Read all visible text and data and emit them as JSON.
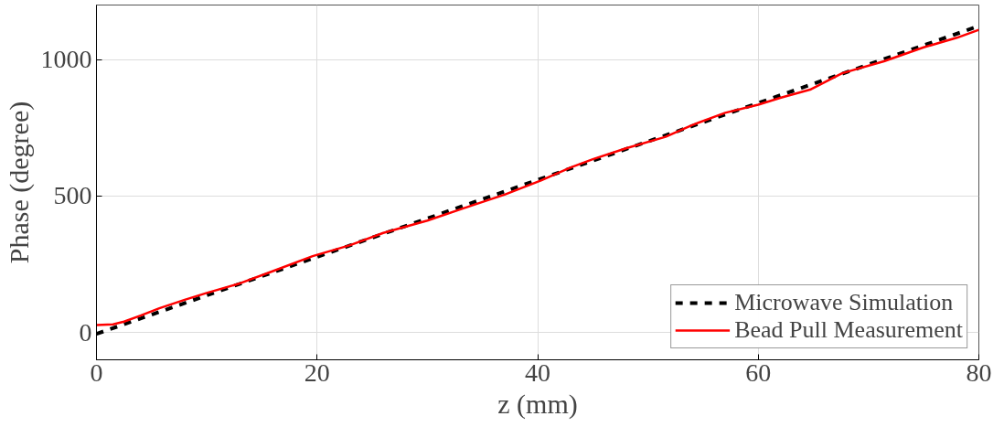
{
  "chart_data": {
    "type": "line",
    "xlabel": "z (mm)",
    "ylabel": "Phase (degree)",
    "xlim": [
      0,
      80
    ],
    "ylim": [
      -100,
      1200
    ],
    "xticks": [
      0,
      20,
      40,
      60,
      80
    ],
    "yticks": [
      0,
      500,
      1000
    ],
    "grid": true,
    "legend": "bottom right",
    "series": [
      {
        "name": "Microwave Simulation",
        "color": "#000000",
        "line_style": "dashed",
        "x": [
          0,
          20,
          40,
          60,
          80
        ],
        "values": [
          -5,
          277,
          559,
          841,
          1123
        ]
      },
      {
        "name": "Bead Pull Measurement",
        "color": "#ff0000",
        "line_style": "solid",
        "x": [
          0,
          1.5,
          2.5,
          4,
          5.7,
          8,
          10,
          13,
          16,
          19.6,
          23,
          26,
          30,
          34,
          37,
          40.3,
          43,
          45,
          48,
          51.6,
          54,
          57,
          60,
          62,
          64.7,
          67.6,
          71.4,
          75,
          78,
          80
        ],
        "values": [
          27,
          30,
          40,
          62,
          89,
          120,
          145,
          180,
          225,
          280,
          320,
          365,
          410,
          465,
          505,
          557,
          605,
          635,
          675,
          717,
          760,
          805,
          835,
          860,
          890,
          950,
          994,
          1045,
          1080,
          1109
        ]
      }
    ]
  }
}
